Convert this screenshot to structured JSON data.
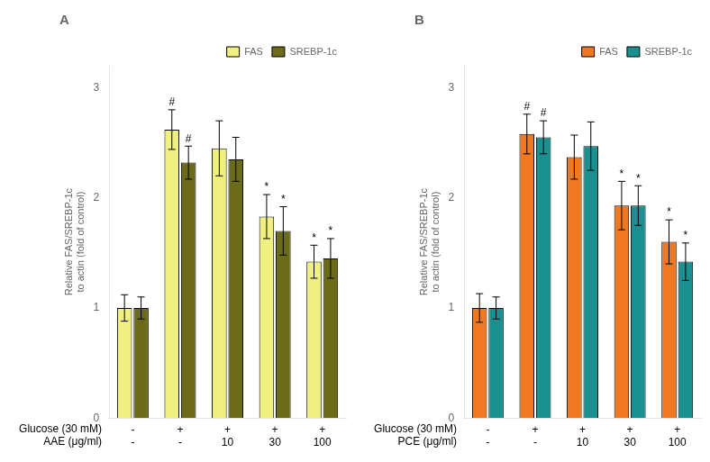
{
  "chart_data": [
    {
      "type": "bar",
      "title": "A",
      "categories": [
        [
          "-",
          "-"
        ],
        [
          "+",
          "-"
        ],
        [
          "+",
          "10"
        ],
        [
          "+",
          "30"
        ],
        [
          "+",
          "100"
        ]
      ],
      "series": [
        {
          "name": "FAS",
          "color": "#f0f080",
          "values": [
            1.0,
            2.62,
            2.45,
            1.83,
            1.42
          ],
          "errors": [
            0.12,
            0.18,
            0.25,
            0.2,
            0.15
          ]
        },
        {
          "name": "SREBP-1c",
          "color": "#6b6b1a",
          "values": [
            1.0,
            2.32,
            2.35,
            1.7,
            1.45
          ],
          "errors": [
            0.1,
            0.15,
            0.2,
            0.22,
            0.18
          ]
        }
      ],
      "ylabel": "Relative FAS/SREBP-1c\nto actin (fold of control)",
      "ylim": [
        0,
        3.2
      ],
      "yticks": [
        0,
        1,
        2,
        3
      ],
      "grid": false,
      "legend": "upper right",
      "annotations": [
        {
          "text": "Glucose (30 mM)"
        },
        {
          "text": "AAE (μg/ml)"
        },
        {
          "text": "#",
          "series": "FAS",
          "index": 1
        },
        {
          "text": "#",
          "series": "SREBP-1c",
          "index": 1
        },
        {
          "text": "*",
          "series": "FAS",
          "index": 3
        },
        {
          "text": "*",
          "series": "FAS",
          "index": 4
        },
        {
          "text": "*",
          "series": "SREBP-1c",
          "index": 3
        },
        {
          "text": "*",
          "series": "SREBP-1c",
          "index": 4
        }
      ]
    },
    {
      "type": "bar",
      "title": "B",
      "categories": [
        [
          "-",
          "-"
        ],
        [
          "+",
          "-"
        ],
        [
          "+",
          "10"
        ],
        [
          "+",
          "30"
        ],
        [
          "+",
          "100"
        ]
      ],
      "series": [
        {
          "name": "FAS",
          "color": "#f07820",
          "values": [
            1.0,
            2.58,
            2.37,
            1.93,
            1.6
          ],
          "errors": [
            0.13,
            0.18,
            0.2,
            0.22,
            0.2
          ]
        },
        {
          "name": "SREBP-1c",
          "color": "#1a9090",
          "values": [
            1.0,
            2.55,
            2.47,
            1.93,
            1.42
          ],
          "errors": [
            0.1,
            0.15,
            0.22,
            0.18,
            0.17
          ]
        }
      ],
      "ylabel": "Relative FAS/SREBP-1c\nto actin (fold of control)",
      "ylim": [
        0,
        3.2
      ],
      "yticks": [
        0,
        1,
        2,
        3
      ],
      "grid": false,
      "legend": "upper right",
      "annotations": [
        {
          "text": "Glucose (30 mM)"
        },
        {
          "text": "PCE (μg/ml)"
        },
        {
          "text": "#",
          "series": "FAS",
          "index": 1
        },
        {
          "text": "#",
          "series": "SREBP-1c",
          "index": 1
        },
        {
          "text": "*",
          "series": "FAS",
          "index": 3
        },
        {
          "text": "*",
          "series": "FAS",
          "index": 4
        },
        {
          "text": "*",
          "series": "SREBP-1c",
          "index": 3
        },
        {
          "text": "*",
          "series": "SREBP-1c",
          "index": 4
        }
      ]
    }
  ]
}
